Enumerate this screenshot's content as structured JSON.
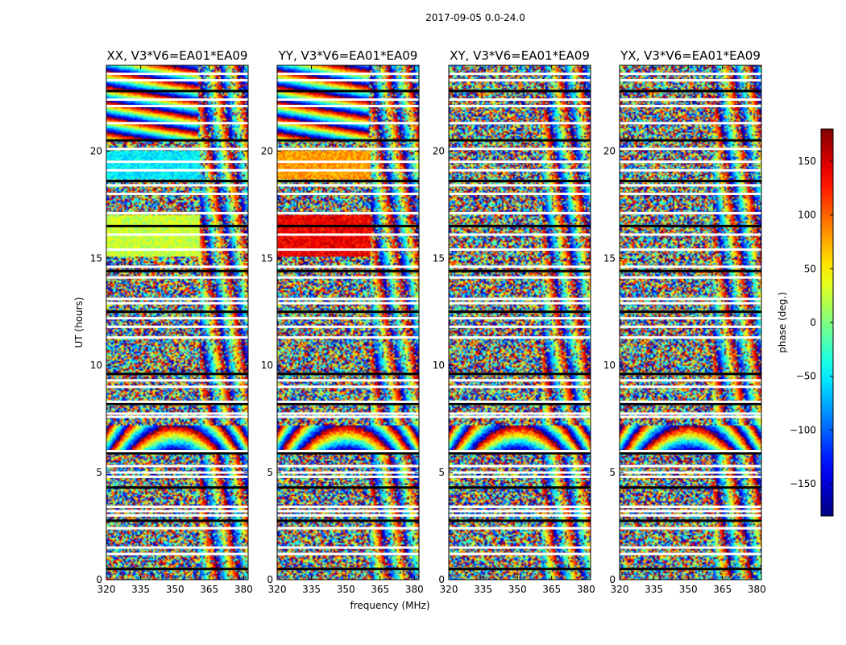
{
  "chart_data": {
    "type": "heatmap",
    "suptitle": "2017-09-05 0.0-24.0",
    "xlabel": "frequency (MHz)",
    "ylabel": "UT (hours)",
    "xlim": [
      320,
      382
    ],
    "ylim": [
      0,
      24
    ],
    "xticks": [
      320,
      335,
      350,
      365,
      380
    ],
    "yticks": [
      0,
      5,
      10,
      15,
      20
    ],
    "colormap": "jet",
    "colorbar": {
      "label": "phase (deg.)",
      "range": [
        -180,
        180
      ],
      "ticks": [
        150,
        100,
        50,
        0,
        -50,
        -100,
        -150
      ],
      "tick_labels": [
        "150",
        "100",
        "50",
        "0",
        "−50",
        "−100",
        "−150"
      ]
    },
    "panels": [
      {
        "title": "XX, V3*V6=EA01*EA09",
        "polarization": "XX"
      },
      {
        "title": "YY, V3*V6=EA01*EA09",
        "polarization": "YY"
      },
      {
        "title": "XY, V3*V6=EA01*EA09",
        "polarization": "XY"
      },
      {
        "title": "YX, V3*V6=EA01*EA09",
        "polarization": "YX"
      }
    ],
    "coherent_regions": [
      {
        "polarization": "XX",
        "ut_range": [
          18.7,
          20.0
        ],
        "freq_range": [
          320,
          361
        ],
        "phase": -50
      },
      {
        "polarization": "XX",
        "ut_range": [
          15.1,
          17.0
        ],
        "freq_range": [
          320,
          361
        ],
        "phase": 25
      },
      {
        "polarization": "YY",
        "ut_range": [
          18.7,
          20.0
        ],
        "freq_range": [
          320,
          361
        ],
        "phase": 80
      },
      {
        "polarization": "YY",
        "ut_range": [
          15.1,
          17.0
        ],
        "freq_range": [
          320,
          361
        ],
        "phase": 140
      }
    ],
    "flagged_ut_rows": [
      0.5,
      1.2,
      1.5,
      2.4,
      2.75,
      3.0,
      3.2,
      3.4,
      4.3,
      4.8,
      5.0,
      5.3,
      5.9,
      6.0,
      7.6,
      7.75,
      8.2,
      8.3,
      9.0,
      9.3,
      9.6,
      11.3,
      11.8,
      12.2,
      12.5,
      12.9,
      13.1,
      14.1,
      14.4,
      14.6,
      15.4,
      16.1,
      16.5,
      17.1,
      18.0,
      18.4,
      18.6,
      19.1,
      19.5,
      20.1,
      20.5,
      21.3,
      22.1,
      22.4,
      22.8,
      23.3,
      23.6
    ]
  }
}
